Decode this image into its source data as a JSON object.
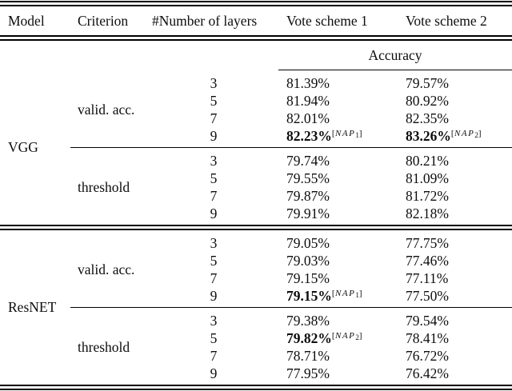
{
  "table": {
    "columns": [
      "Model",
      "Criterion",
      "#Number of layers",
      "Vote scheme 1",
      "Vote scheme 2"
    ],
    "accuracy_label": "Accuracy",
    "text_color": "#0d0d0d",
    "rule_color": "#000000",
    "groups": [
      {
        "model": "VGG",
        "blocks": [
          {
            "criterion": "valid. acc.",
            "rows": [
              {
                "layers": "3",
                "vote1": {
                  "text": "81.39%"
                },
                "vote2": {
                  "text": "79.57%"
                }
              },
              {
                "layers": "5",
                "vote1": {
                  "text": "81.94%"
                },
                "vote2": {
                  "text": "80.92%"
                }
              },
              {
                "layers": "7",
                "vote1": {
                  "text": "82.01%"
                },
                "vote2": {
                  "text": "82.35%"
                }
              },
              {
                "layers": "9",
                "vote1": {
                  "text": "82.23%",
                  "bold": true,
                  "sup": {
                    "text": "NAP",
                    "sub": "1"
                  }
                },
                "vote2": {
                  "text": "83.26%",
                  "bold": true,
                  "sup": {
                    "text": "NAP",
                    "sub": "2"
                  }
                }
              }
            ]
          },
          {
            "criterion": "threshold",
            "rows": [
              {
                "layers": "3",
                "vote1": {
                  "text": "79.74%"
                },
                "vote2": {
                  "text": "80.21%"
                }
              },
              {
                "layers": "5",
                "vote1": {
                  "text": "79.55%"
                },
                "vote2": {
                  "text": "81.09%"
                }
              },
              {
                "layers": "7",
                "vote1": {
                  "text": "79.87%"
                },
                "vote2": {
                  "text": "81.72%"
                }
              },
              {
                "layers": "9",
                "vote1": {
                  "text": "79.91%"
                },
                "vote2": {
                  "text": "82.18%"
                }
              }
            ]
          }
        ]
      },
      {
        "model": "ResNET",
        "blocks": [
          {
            "criterion": "valid. acc.",
            "rows": [
              {
                "layers": "3",
                "vote1": {
                  "text": "79.05%"
                },
                "vote2": {
                  "text": "77.75%"
                }
              },
              {
                "layers": "5",
                "vote1": {
                  "text": "79.03%"
                },
                "vote2": {
                  "text": "77.46%"
                }
              },
              {
                "layers": "7",
                "vote1": {
                  "text": "79.15%"
                },
                "vote2": {
                  "text": "77.11%"
                }
              },
              {
                "layers": "9",
                "vote1": {
                  "text": "79.15%",
                  "bold": true,
                  "sup": {
                    "text": "NAP",
                    "sub": "1"
                  }
                },
                "vote2": {
                  "text": "77.50%"
                }
              }
            ]
          },
          {
            "criterion": "threshold",
            "rows": [
              {
                "layers": "3",
                "vote1": {
                  "text": "79.38%"
                },
                "vote2": {
                  "text": "79.54%"
                }
              },
              {
                "layers": "5",
                "vote1": {
                  "text": "79.82%",
                  "bold": true,
                  "sup": {
                    "text": "NAP",
                    "sub": "2"
                  }
                },
                "vote2": {
                  "text": "78.41%"
                }
              },
              {
                "layers": "7",
                "vote1": {
                  "text": "78.71%"
                },
                "vote2": {
                  "text": "76.72%"
                }
              },
              {
                "layers": "9",
                "vote1": {
                  "text": "77.95%"
                },
                "vote2": {
                  "text": "76.42%"
                }
              }
            ]
          }
        ]
      }
    ]
  },
  "chart_data": {
    "type": "table",
    "title": "Accuracy",
    "columns": [
      "Model",
      "Criterion",
      "#Number of layers",
      "Vote scheme 1",
      "Vote scheme 2"
    ],
    "rows": [
      [
        "VGG",
        "valid. acc.",
        3,
        "81.39%",
        "79.57%"
      ],
      [
        "VGG",
        "valid. acc.",
        5,
        "81.94%",
        "80.92%"
      ],
      [
        "VGG",
        "valid. acc.",
        7,
        "82.01%",
        "82.35%"
      ],
      [
        "VGG",
        "valid. acc.",
        9,
        "82.23% [NAP_1] (bold)",
        "83.26% [NAP_2] (bold)"
      ],
      [
        "VGG",
        "threshold",
        3,
        "79.74%",
        "80.21%"
      ],
      [
        "VGG",
        "threshold",
        5,
        "79.55%",
        "81.09%"
      ],
      [
        "VGG",
        "threshold",
        7,
        "79.87%",
        "81.72%"
      ],
      [
        "VGG",
        "threshold",
        9,
        "79.91%",
        "82.18%"
      ],
      [
        "ResNET",
        "valid. acc.",
        3,
        "79.05%",
        "77.75%"
      ],
      [
        "ResNET",
        "valid. acc.",
        5,
        "79.03%",
        "77.46%"
      ],
      [
        "ResNET",
        "valid. acc.",
        7,
        "79.15%",
        "77.11%"
      ],
      [
        "ResNET",
        "valid. acc.",
        9,
        "79.15% [NAP_1] (bold)",
        "77.50%"
      ],
      [
        "ResNET",
        "threshold",
        3,
        "79.38%",
        "79.54%"
      ],
      [
        "ResNET",
        "threshold",
        5,
        "79.82% [NAP_2] (bold)",
        "78.41%"
      ],
      [
        "ResNET",
        "threshold",
        7,
        "78.71%",
        "76.72%"
      ],
      [
        "ResNET",
        "threshold",
        9,
        "77.95%",
        "76.42%"
      ]
    ]
  }
}
